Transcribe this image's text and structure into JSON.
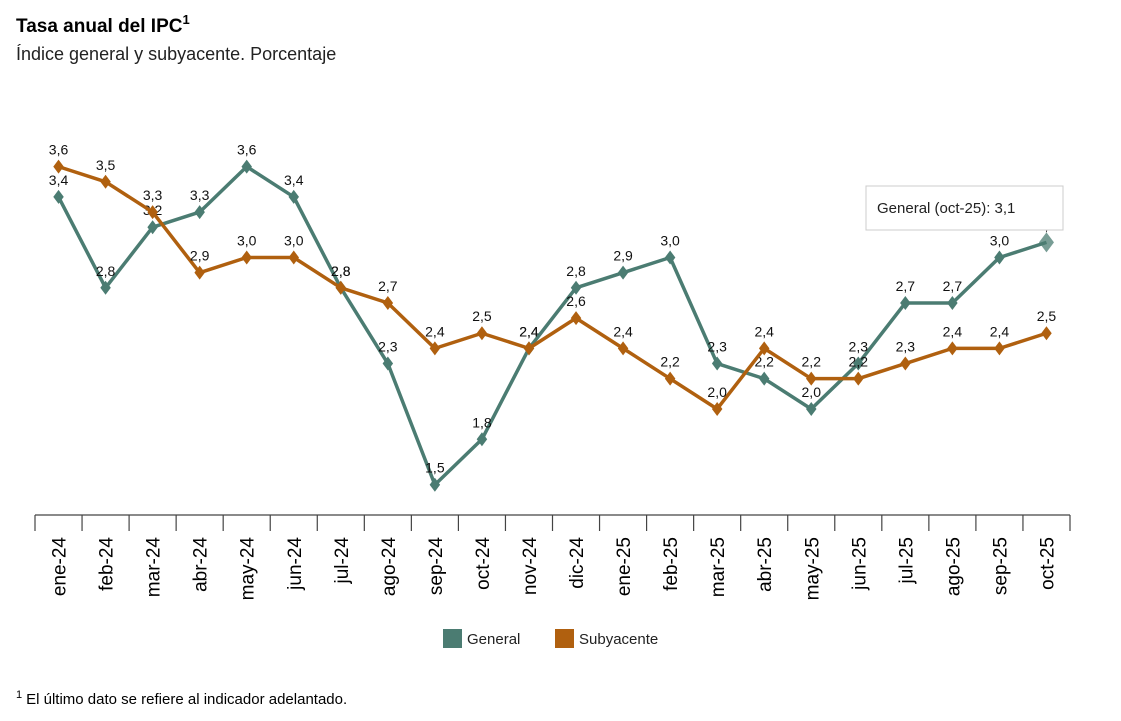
{
  "chart_data": {
    "type": "line",
    "title": "Tasa anual del IPC",
    "title_note": "1",
    "subtitle": "Índice general y subyacente. Porcentaje",
    "categories": [
      "ene-24",
      "feb-24",
      "mar-24",
      "abr-24",
      "may-24",
      "jun-24",
      "jul-24",
      "ago-24",
      "sep-24",
      "oct-24",
      "nov-24",
      "dic-24",
      "ene-25",
      "feb-25",
      "mar-25",
      "abr-25",
      "may-25",
      "jun-25",
      "jul-25",
      "ago-25",
      "sep-25",
      "oct-25"
    ],
    "series": [
      {
        "name": "General",
        "color": "#4b7c72",
        "values": [
          3.4,
          2.8,
          3.2,
          3.3,
          3.6,
          3.4,
          2.8,
          2.3,
          1.5,
          1.8,
          2.4,
          2.8,
          2.9,
          3.0,
          2.3,
          2.2,
          2.0,
          2.3,
          2.7,
          2.7,
          3.0,
          3.1
        ],
        "value_labels": [
          "3,4",
          "2,8",
          "3,2",
          "3,3",
          "3,6",
          "3,4",
          "2,8",
          "2,3",
          "1,5",
          "1,8",
          "2,4",
          "2,8",
          "2,9",
          "3,0",
          "2,3",
          "2,2",
          "2,0",
          "2,3",
          "2,7",
          "2,7",
          "3,0",
          "3,1"
        ]
      },
      {
        "name": "Subyacente",
        "color": "#b0600f",
        "values": [
          3.6,
          3.5,
          3.3,
          2.9,
          3.0,
          3.0,
          2.8,
          2.7,
          2.4,
          2.5,
          2.4,
          2.6,
          2.4,
          2.2,
          2.0,
          2.4,
          2.2,
          2.2,
          2.3,
          2.4,
          2.4,
          2.5
        ],
        "value_labels": [
          "3,6",
          "3,5",
          "3,3",
          "2,9",
          "3,0",
          "3,0",
          "2,8",
          "2,7",
          "2,4",
          "2,5",
          "2,4",
          "2,6",
          "2,4",
          "2,2",
          "2,0",
          "2,4",
          "2,2",
          "2,2",
          "2,3",
          "2,4",
          "2,4",
          "2,5"
        ]
      }
    ],
    "ylim": [
      1.3,
      4.04
    ],
    "tooltip": "General (oct-25): 3,1",
    "footnote": {
      "mark": "1",
      "text": "El último dato se refiere al indicador adelantado."
    }
  }
}
